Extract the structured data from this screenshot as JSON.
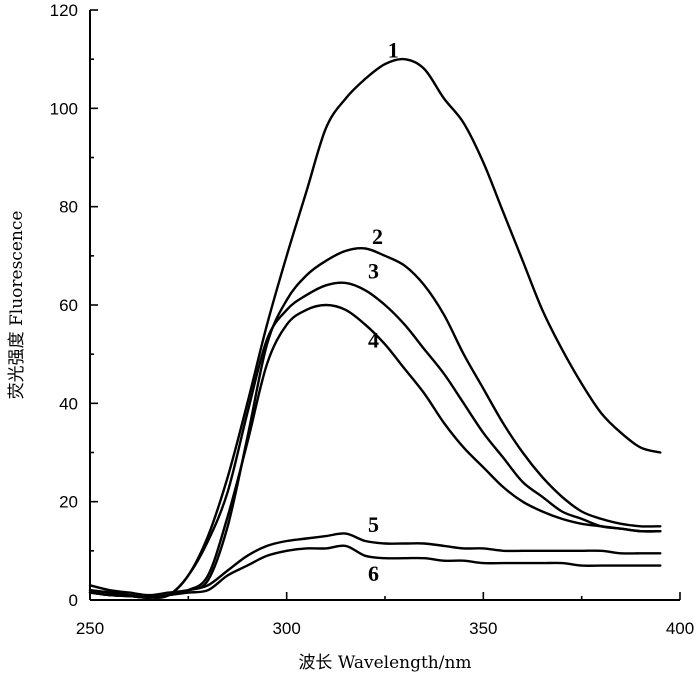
{
  "chart_data": {
    "type": "line",
    "title": "",
    "xlabel": "波长 Wavelength/nm",
    "ylabel": "荧光强度 Fluorescence",
    "xlim": [
      250,
      400
    ],
    "ylim": [
      0,
      120
    ],
    "x_ticks": [
      250,
      300,
      350,
      400
    ],
    "y_ticks": [
      0,
      20,
      40,
      60,
      80,
      100,
      120
    ],
    "x_tick_labels": [
      "250",
      "300",
      "350",
      "400"
    ],
    "y_tick_labels": [
      "0",
      "20",
      "40",
      "60",
      "80",
      "100",
      "120"
    ],
    "grid": false,
    "legend": "inline curve numbers",
    "series": [
      {
        "label": "1",
        "label_at": [
          322,
          112
        ],
        "points": [
          [
            250,
            2
          ],
          [
            255,
            1.5
          ],
          [
            260,
            1
          ],
          [
            265,
            0.5
          ],
          [
            270,
            1
          ],
          [
            275,
            5
          ],
          [
            280,
            13
          ],
          [
            285,
            25
          ],
          [
            290,
            40
          ],
          [
            295,
            56
          ],
          [
            300,
            70
          ],
          [
            305,
            83
          ],
          [
            310,
            96
          ],
          [
            315,
            102
          ],
          [
            320,
            106
          ],
          [
            325,
            109
          ],
          [
            330,
            110
          ],
          [
            335,
            108
          ],
          [
            340,
            102
          ],
          [
            345,
            97
          ],
          [
            350,
            89
          ],
          [
            355,
            79
          ],
          [
            360,
            69
          ],
          [
            365,
            59
          ],
          [
            370,
            51
          ],
          [
            375,
            44
          ],
          [
            380,
            38
          ],
          [
            385,
            34
          ],
          [
            390,
            31
          ],
          [
            395,
            30
          ]
        ]
      },
      {
        "label": "2",
        "label_at": [
          318,
          74
        ],
        "points": [
          [
            250,
            1.5
          ],
          [
            255,
            1
          ],
          [
            260,
            0.8
          ],
          [
            265,
            0.5
          ],
          [
            270,
            1
          ],
          [
            275,
            2
          ],
          [
            280,
            4
          ],
          [
            285,
            15
          ],
          [
            290,
            33
          ],
          [
            295,
            52
          ],
          [
            300,
            61
          ],
          [
            305,
            66
          ],
          [
            310,
            69
          ],
          [
            315,
            71
          ],
          [
            320,
            71.5
          ],
          [
            325,
            70
          ],
          [
            330,
            68
          ],
          [
            335,
            64
          ],
          [
            340,
            58
          ],
          [
            345,
            50
          ],
          [
            350,
            43
          ],
          [
            355,
            36
          ],
          [
            360,
            30
          ],
          [
            365,
            25
          ],
          [
            370,
            21
          ],
          [
            375,
            18
          ],
          [
            380,
            16.5
          ],
          [
            385,
            15.5
          ],
          [
            390,
            15
          ],
          [
            395,
            15
          ]
        ]
      },
      {
        "label": "3",
        "label_at": [
          317,
          67
        ],
        "points": [
          [
            250,
            1.5
          ],
          [
            255,
            1
          ],
          [
            260,
            0.8
          ],
          [
            265,
            0.5
          ],
          [
            270,
            1
          ],
          [
            275,
            5
          ],
          [
            280,
            12
          ],
          [
            285,
            22
          ],
          [
            290,
            38
          ],
          [
            295,
            53
          ],
          [
            300,
            59
          ],
          [
            305,
            62
          ],
          [
            310,
            64
          ],
          [
            315,
            64.5
          ],
          [
            320,
            63
          ],
          [
            325,
            60
          ],
          [
            330,
            56
          ],
          [
            335,
            51
          ],
          [
            340,
            46
          ],
          [
            345,
            40
          ],
          [
            350,
            34
          ],
          [
            355,
            29
          ],
          [
            360,
            24
          ],
          [
            365,
            21
          ],
          [
            370,
            18
          ],
          [
            375,
            16.5
          ],
          [
            380,
            15
          ],
          [
            385,
            14.5
          ],
          [
            390,
            14
          ],
          [
            395,
            14
          ]
        ]
      },
      {
        "label": "4",
        "label_at": [
          317,
          53
        ],
        "points": [
          [
            250,
            1.5
          ],
          [
            255,
            1
          ],
          [
            260,
            0.8
          ],
          [
            265,
            0.5
          ],
          [
            270,
            1
          ],
          [
            275,
            2
          ],
          [
            280,
            5
          ],
          [
            285,
            17
          ],
          [
            290,
            32
          ],
          [
            295,
            48
          ],
          [
            300,
            56
          ],
          [
            305,
            59
          ],
          [
            310,
            60
          ],
          [
            315,
            59
          ],
          [
            320,
            56
          ],
          [
            325,
            52
          ],
          [
            330,
            47
          ],
          [
            335,
            42
          ],
          [
            340,
            36
          ],
          [
            345,
            31
          ],
          [
            350,
            27
          ],
          [
            355,
            23
          ],
          [
            360,
            20
          ],
          [
            365,
            18
          ],
          [
            370,
            16.5
          ],
          [
            375,
            15.5
          ],
          [
            380,
            15
          ],
          [
            385,
            14.5
          ],
          [
            390,
            14
          ],
          [
            395,
            14
          ]
        ]
      },
      {
        "label": "5",
        "label_at": [
          317,
          15.5
        ],
        "points": [
          [
            250,
            3
          ],
          [
            255,
            2
          ],
          [
            260,
            1.5
          ],
          [
            265,
            1
          ],
          [
            270,
            1.5
          ],
          [
            275,
            2
          ],
          [
            280,
            3
          ],
          [
            285,
            6
          ],
          [
            290,
            9
          ],
          [
            295,
            11
          ],
          [
            300,
            12
          ],
          [
            305,
            12.5
          ],
          [
            310,
            13
          ],
          [
            315,
            13.5
          ],
          [
            320,
            12
          ],
          [
            325,
            11.5
          ],
          [
            330,
            11.5
          ],
          [
            335,
            11.5
          ],
          [
            340,
            11
          ],
          [
            345,
            10.5
          ],
          [
            350,
            10.5
          ],
          [
            355,
            10
          ],
          [
            360,
            10
          ],
          [
            365,
            10
          ],
          [
            370,
            10
          ],
          [
            375,
            10
          ],
          [
            380,
            10
          ],
          [
            385,
            9.5
          ],
          [
            390,
            9.5
          ],
          [
            395,
            9.5
          ]
        ]
      },
      {
        "label": "6",
        "label_at": [
          317,
          5.5
        ],
        "points": [
          [
            250,
            2
          ],
          [
            255,
            1.5
          ],
          [
            260,
            1
          ],
          [
            265,
            0.5
          ],
          [
            270,
            1
          ],
          [
            275,
            1.5
          ],
          [
            280,
            2
          ],
          [
            285,
            5
          ],
          [
            290,
            7
          ],
          [
            295,
            9
          ],
          [
            300,
            10
          ],
          [
            305,
            10.5
          ],
          [
            310,
            10.5
          ],
          [
            315,
            11
          ],
          [
            320,
            9
          ],
          [
            325,
            8.5
          ],
          [
            330,
            8.5
          ],
          [
            335,
            8.5
          ],
          [
            340,
            8
          ],
          [
            345,
            8
          ],
          [
            350,
            7.5
          ],
          [
            355,
            7.5
          ],
          [
            360,
            7.5
          ],
          [
            365,
            7.5
          ],
          [
            370,
            7.5
          ],
          [
            375,
            7
          ],
          [
            380,
            7
          ],
          [
            385,
            7
          ],
          [
            390,
            7
          ],
          [
            395,
            7
          ]
        ]
      }
    ]
  }
}
